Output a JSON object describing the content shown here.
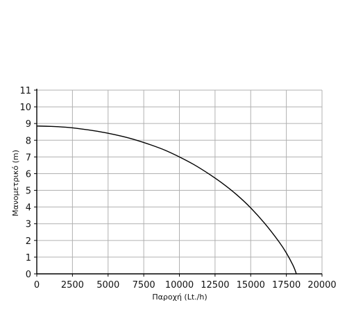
{
  "chart_data": {
    "type": "line",
    "title": "",
    "xlabel": "Παροχή (Lt./h)",
    "ylabel": "Μανομετρικό (m)",
    "xlim": [
      0,
      20000
    ],
    "ylim": [
      0,
      11
    ],
    "x_ticks": [
      0,
      2500,
      5000,
      7500,
      10000,
      12500,
      15000,
      17500,
      20000
    ],
    "y_ticks": [
      0,
      1,
      2,
      3,
      4,
      5,
      6,
      7,
      8,
      9,
      10,
      11
    ],
    "x_tick_labels": [
      "0",
      "2500",
      "5000",
      "7500",
      "10000",
      "12500",
      "15000",
      "17500",
      "20000"
    ],
    "y_tick_labels": [
      "0",
      "1",
      "2",
      "3",
      "4",
      "5",
      "6",
      "7",
      "8",
      "9",
      "10",
      "11"
    ],
    "grid": true,
    "legend": "none",
    "line_color": "#000000",
    "grid_color": "#b0b0b0",
    "series": [
      {
        "x": [
          0,
          1000,
          2000,
          3000,
          4000,
          5000,
          6000,
          7000,
          8000,
          9000,
          10000,
          11000,
          12000,
          13000,
          14000,
          15000,
          16000,
          17000,
          17500,
          18000,
          18200
        ],
        "y": [
          8.85,
          8.83,
          8.78,
          8.69,
          8.57,
          8.42,
          8.23,
          8.0,
          7.72,
          7.4,
          7.0,
          6.55,
          6.02,
          5.43,
          4.75,
          3.95,
          3.0,
          1.9,
          1.25,
          0.45,
          0.0
        ]
      }
    ]
  }
}
